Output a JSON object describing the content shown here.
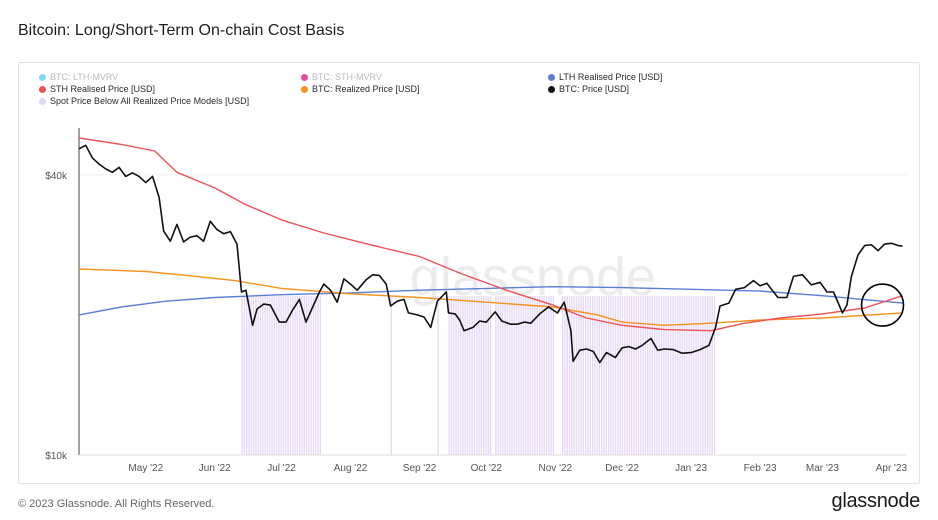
{
  "title": "Bitcoin: Long/Short-Term On-chain Cost Basis",
  "footer": {
    "copyright": "© 2023 Glassnode. All Rights Reserved.",
    "logo": "glassnode"
  },
  "watermark": "glassnode",
  "legend": [
    {
      "label": "BTC: LTH-MVRV",
      "color": "#5bc8f5",
      "active": false
    },
    {
      "label": "BTC: STH-MVRV",
      "color": "#d6157f",
      "active": false
    },
    {
      "label": "LTH Realised Price [USD]",
      "color": "#5b7fd6",
      "active": true
    },
    {
      "label": "STH Realised Price [USD]",
      "color": "#ef5157",
      "active": true
    },
    {
      "label": "BTC: Realized Price [USD]",
      "color": "#f7931a",
      "active": true
    },
    {
      "label": "BTC: Price [USD]",
      "color": "#111111",
      "active": true
    },
    {
      "label": "Spot Price Below All Realized Price Models [USD]",
      "color": "#e3d7f7",
      "active": true
    }
  ],
  "chart_data": {
    "type": "line",
    "title": "Bitcoin: Long/Short-Term On-chain Cost Basis",
    "y_scale": "log",
    "ylim": [
      10000,
      48000
    ],
    "y_ticks": [
      "$40k",
      "$10k"
    ],
    "y_tick_values": [
      40000,
      10000
    ],
    "x_ticks": [
      "May '22",
      "Jun '22",
      "Jul '22",
      "Aug '22",
      "Sep '22",
      "Oct '22",
      "Nov '22",
      "Dec '22",
      "Jan '23",
      "Feb '23",
      "Mar '23",
      "Apr '23"
    ],
    "x_tick_dates": [
      "2022-05-01",
      "2022-06-01",
      "2022-07-01",
      "2022-08-01",
      "2022-09-01",
      "2022-10-01",
      "2022-11-01",
      "2022-12-01",
      "2023-01-01",
      "2023-02-01",
      "2023-03-01",
      "2023-04-01"
    ],
    "xlim": [
      "2022-04-01",
      "2023-04-08"
    ],
    "grid": true,
    "legend_position": "top",
    "annotation": "circle around LTH/STH realised price crossover near late March 2023",
    "annotation_date": "2023-03-28",
    "annotation_value": 21000,
    "series": [
      {
        "name": "BTC: Price [USD]",
        "color": "#111111",
        "points": [
          [
            "2022-04-01",
            45500
          ],
          [
            "2022-04-04",
            46300
          ],
          [
            "2022-04-07",
            43500
          ],
          [
            "2022-04-10",
            42200
          ],
          [
            "2022-04-13",
            41200
          ],
          [
            "2022-04-16",
            40500
          ],
          [
            "2022-04-19",
            41500
          ],
          [
            "2022-04-22",
            39700
          ],
          [
            "2022-04-25",
            40400
          ],
          [
            "2022-04-28",
            39700
          ],
          [
            "2022-05-01",
            38500
          ],
          [
            "2022-05-04",
            39700
          ],
          [
            "2022-05-07",
            35800
          ],
          [
            "2022-05-09",
            30300
          ],
          [
            "2022-05-12",
            28800
          ],
          [
            "2022-05-15",
            31300
          ],
          [
            "2022-05-18",
            28700
          ],
          [
            "2022-05-21",
            29400
          ],
          [
            "2022-05-24",
            29600
          ],
          [
            "2022-05-27",
            28800
          ],
          [
            "2022-05-30",
            31800
          ],
          [
            "2022-06-02",
            30500
          ],
          [
            "2022-06-05",
            29900
          ],
          [
            "2022-06-08",
            30200
          ],
          [
            "2022-06-11",
            28400
          ],
          [
            "2022-06-13",
            22400
          ],
          [
            "2022-06-15",
            22600
          ],
          [
            "2022-06-18",
            19000
          ],
          [
            "2022-06-20",
            20600
          ],
          [
            "2022-06-23",
            21100
          ],
          [
            "2022-06-26",
            21000
          ],
          [
            "2022-06-30",
            19300
          ],
          [
            "2022-07-03",
            19300
          ],
          [
            "2022-07-06",
            20500
          ],
          [
            "2022-07-09",
            21600
          ],
          [
            "2022-07-12",
            19300
          ],
          [
            "2022-07-15",
            20800
          ],
          [
            "2022-07-18",
            22400
          ],
          [
            "2022-07-20",
            23300
          ],
          [
            "2022-07-23",
            22600
          ],
          [
            "2022-07-26",
            21300
          ],
          [
            "2022-07-29",
            23900
          ],
          [
            "2022-08-01",
            23300
          ],
          [
            "2022-08-04",
            22600
          ],
          [
            "2022-08-08",
            23800
          ],
          [
            "2022-08-11",
            24400
          ],
          [
            "2022-08-14",
            24300
          ],
          [
            "2022-08-17",
            23300
          ],
          [
            "2022-08-19",
            20900
          ],
          [
            "2022-08-22",
            21400
          ],
          [
            "2022-08-25",
            21600
          ],
          [
            "2022-08-27",
            20200
          ],
          [
            "2022-08-31",
            20000
          ],
          [
            "2022-09-03",
            19800
          ],
          [
            "2022-09-06",
            18800
          ],
          [
            "2022-09-09",
            21400
          ],
          [
            "2022-09-13",
            22400
          ],
          [
            "2022-09-14",
            20200
          ],
          [
            "2022-09-17",
            20100
          ],
          [
            "2022-09-19",
            19500
          ],
          [
            "2022-09-21",
            18500
          ],
          [
            "2022-09-25",
            18800
          ],
          [
            "2022-09-28",
            19400
          ],
          [
            "2022-10-01",
            19300
          ],
          [
            "2022-10-05",
            20300
          ],
          [
            "2022-10-08",
            19400
          ],
          [
            "2022-10-12",
            19100
          ],
          [
            "2022-10-15",
            19100
          ],
          [
            "2022-10-18",
            19300
          ],
          [
            "2022-10-21",
            19200
          ],
          [
            "2022-10-25",
            20100
          ],
          [
            "2022-10-29",
            20800
          ],
          [
            "2022-11-02",
            20200
          ],
          [
            "2022-11-05",
            21300
          ],
          [
            "2022-11-08",
            18500
          ],
          [
            "2022-11-09",
            15900
          ],
          [
            "2022-11-12",
            16800
          ],
          [
            "2022-11-15",
            16900
          ],
          [
            "2022-11-18",
            16700
          ],
          [
            "2022-11-21",
            15800
          ],
          [
            "2022-11-24",
            16600
          ],
          [
            "2022-11-28",
            16200
          ],
          [
            "2022-12-01",
            17000
          ],
          [
            "2022-12-04",
            17100
          ],
          [
            "2022-12-07",
            16900
          ],
          [
            "2022-12-10",
            17200
          ],
          [
            "2022-12-14",
            17800
          ],
          [
            "2022-12-17",
            16800
          ],
          [
            "2022-12-20",
            16900
          ],
          [
            "2022-12-24",
            16850
          ],
          [
            "2022-12-28",
            16550
          ],
          [
            "2023-01-01",
            16600
          ],
          [
            "2023-01-05",
            16850
          ],
          [
            "2023-01-09",
            17200
          ],
          [
            "2023-01-12",
            18800
          ],
          [
            "2023-01-14",
            20900
          ],
          [
            "2023-01-18",
            21200
          ],
          [
            "2023-01-21",
            22700
          ],
          [
            "2023-01-25",
            22900
          ],
          [
            "2023-01-29",
            23700
          ],
          [
            "2023-02-01",
            23100
          ],
          [
            "2023-02-04",
            23400
          ],
          [
            "2023-02-09",
            21800
          ],
          [
            "2023-02-13",
            21800
          ],
          [
            "2023-02-16",
            24200
          ],
          [
            "2023-02-20",
            24400
          ],
          [
            "2023-02-24",
            23200
          ],
          [
            "2023-02-28",
            23500
          ],
          [
            "2023-03-03",
            22400
          ],
          [
            "2023-03-06",
            22400
          ],
          [
            "2023-03-10",
            20200
          ],
          [
            "2023-03-12",
            21000
          ],
          [
            "2023-03-14",
            24200
          ],
          [
            "2023-03-17",
            26900
          ],
          [
            "2023-03-20",
            28200
          ],
          [
            "2023-03-23",
            28300
          ],
          [
            "2023-03-26",
            27500
          ],
          [
            "2023-03-29",
            28400
          ],
          [
            "2023-04-01",
            28500
          ],
          [
            "2023-04-04",
            28200
          ],
          [
            "2023-04-06",
            28100
          ]
        ]
      },
      {
        "name": "STH Realised Price [USD]",
        "color": "#ef5157",
        "points": [
          [
            "2022-04-01",
            48000
          ],
          [
            "2022-04-20",
            46500
          ],
          [
            "2022-05-05",
            45000
          ],
          [
            "2022-05-15",
            40500
          ],
          [
            "2022-06-01",
            37500
          ],
          [
            "2022-06-15",
            34500
          ],
          [
            "2022-07-01",
            32000
          ],
          [
            "2022-07-20",
            30000
          ],
          [
            "2022-08-10",
            28300
          ],
          [
            "2022-09-01",
            26700
          ],
          [
            "2022-09-20",
            24500
          ],
          [
            "2022-10-10",
            22600
          ],
          [
            "2022-10-31",
            21000
          ],
          [
            "2022-11-15",
            19700
          ],
          [
            "2022-12-01",
            19000
          ],
          [
            "2022-12-20",
            18600
          ],
          [
            "2023-01-10",
            18500
          ],
          [
            "2023-01-25",
            19200
          ],
          [
            "2023-02-10",
            19700
          ],
          [
            "2023-03-01",
            20100
          ],
          [
            "2023-03-20",
            20700
          ],
          [
            "2023-04-06",
            22000
          ]
        ]
      },
      {
        "name": "LTH Realised Price [USD]",
        "color": "#5b7fd6",
        "points": [
          [
            "2022-04-01",
            20000
          ],
          [
            "2022-04-20",
            20800
          ],
          [
            "2022-05-10",
            21400
          ],
          [
            "2022-06-01",
            21800
          ],
          [
            "2022-07-01",
            22100
          ],
          [
            "2022-08-01",
            22300
          ],
          [
            "2022-09-01",
            22600
          ],
          [
            "2022-10-01",
            22800
          ],
          [
            "2022-10-31",
            23000
          ],
          [
            "2022-12-01",
            22900
          ],
          [
            "2023-01-01",
            22700
          ],
          [
            "2023-02-01",
            22500
          ],
          [
            "2023-03-01",
            22000
          ],
          [
            "2023-04-06",
            21200
          ]
        ]
      },
      {
        "name": "BTC: Realized Price [USD]",
        "color": "#f7931a",
        "points": [
          [
            "2022-04-01",
            25100
          ],
          [
            "2022-05-01",
            24800
          ],
          [
            "2022-05-20",
            24300
          ],
          [
            "2022-06-10",
            23700
          ],
          [
            "2022-07-01",
            22800
          ],
          [
            "2022-08-01",
            22200
          ],
          [
            "2022-09-01",
            21800
          ],
          [
            "2022-10-01",
            21300
          ],
          [
            "2022-10-31",
            20800
          ],
          [
            "2022-11-20",
            20000
          ],
          [
            "2022-12-01",
            19300
          ],
          [
            "2022-12-20",
            19000
          ],
          [
            "2023-01-10",
            19200
          ],
          [
            "2023-02-01",
            19500
          ],
          [
            "2023-03-01",
            19700
          ],
          [
            "2023-04-06",
            20200
          ]
        ]
      }
    ],
    "shaded_regions": {
      "name": "Spot Price Below All Realized Price Models [USD]",
      "color": "#e3d7f7",
      "ranges": [
        [
          "2022-06-13",
          "2022-07-19"
        ],
        [
          "2022-08-19",
          "2022-08-20"
        ],
        [
          "2022-09-09",
          "2022-09-10"
        ],
        [
          "2022-09-14",
          "2022-10-03"
        ],
        [
          "2022-10-05",
          "2022-10-31"
        ],
        [
          "2022-11-04",
          "2023-01-12"
        ]
      ]
    }
  }
}
